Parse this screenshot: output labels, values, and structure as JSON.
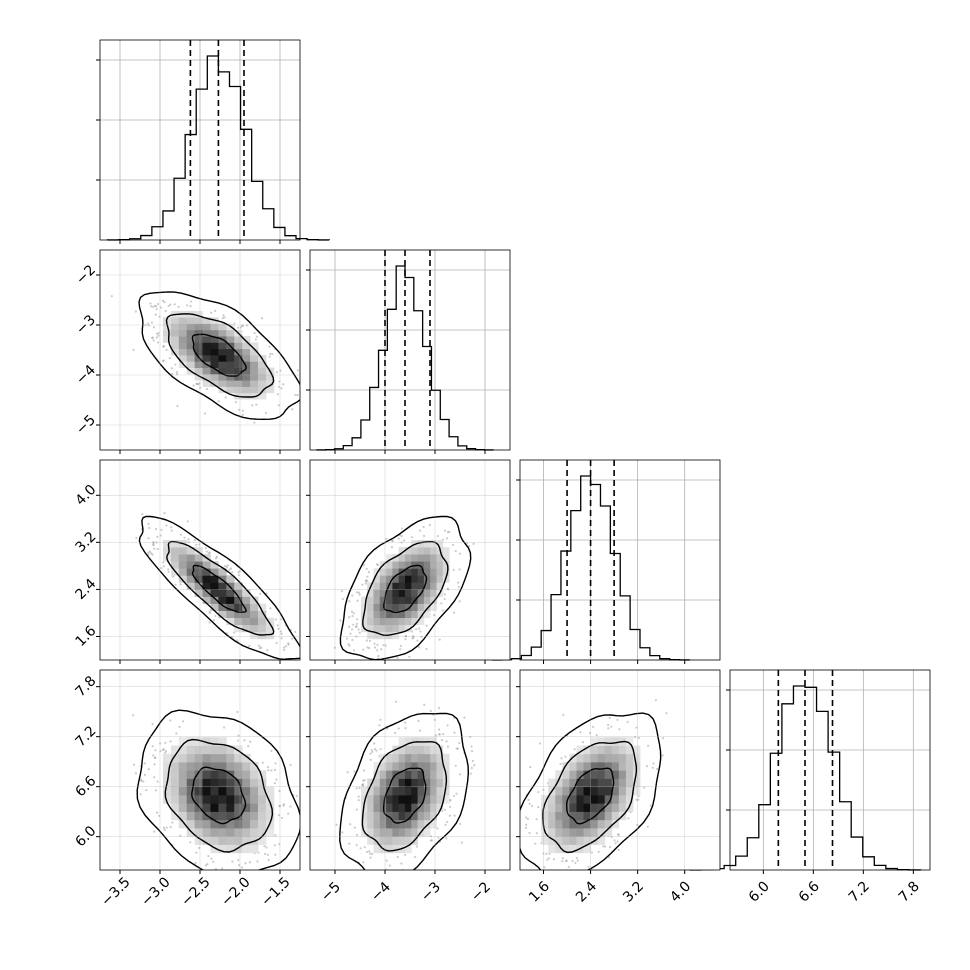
{
  "chart_data": {
    "type": "corner",
    "title": "",
    "grid": true,
    "parameters": [
      {
        "label": "",
        "range": [
          -3.75,
          -1.25
        ],
        "ticks": [
          "−3.5",
          "−3.0",
          "−2.5",
          "−2.0",
          "−1.5"
        ],
        "tick_values": [
          -3.5,
          -3.0,
          -2.5,
          -2.0,
          -1.5
        ],
        "mean": -2.27,
        "sd": 0.33,
        "quantiles": [
          -2.62,
          -2.27,
          -1.95
        ]
      },
      {
        "label": "",
        "range": [
          -5.5,
          -1.5
        ],
        "ticks": [
          "−5",
          "−4",
          "−3",
          "−2"
        ],
        "tick_values": [
          -5,
          -4,
          -3,
          -2
        ],
        "mean": -3.6,
        "sd": 0.42,
        "quantiles": [
          -4.0,
          -3.6,
          -3.1
        ]
      },
      {
        "label": "",
        "range": [
          1.2,
          4.6
        ],
        "ticks": [
          "1.6",
          "2.4",
          "3.2",
          "4.0"
        ],
        "tick_values": [
          1.6,
          2.4,
          3.2,
          4.0
        ],
        "mean": 2.4,
        "sd": 0.4,
        "quantiles": [
          2.0,
          2.4,
          2.8
        ]
      },
      {
        "label": "",
        "range": [
          5.6,
          8.0
        ],
        "ticks": [
          "6.0",
          "6.6",
          "7.2",
          "7.8"
        ],
        "tick_values": [
          6.0,
          6.6,
          7.2,
          7.8
        ],
        "mean": 6.5,
        "sd": 0.33,
        "quantiles": [
          6.18,
          6.5,
          6.83
        ]
      }
    ],
    "correlations": [
      [
        1,
        -0.6,
        -0.85,
        -0.25
      ],
      [
        -0.6,
        1,
        0.5,
        0.35
      ],
      [
        -0.85,
        0.5,
        1,
        0.45
      ],
      [
        -0.25,
        0.35,
        0.45,
        1
      ]
    ],
    "histogram_bins": 20,
    "contour_levels": [
      0.39,
      0.86,
      0.99
    ]
  }
}
